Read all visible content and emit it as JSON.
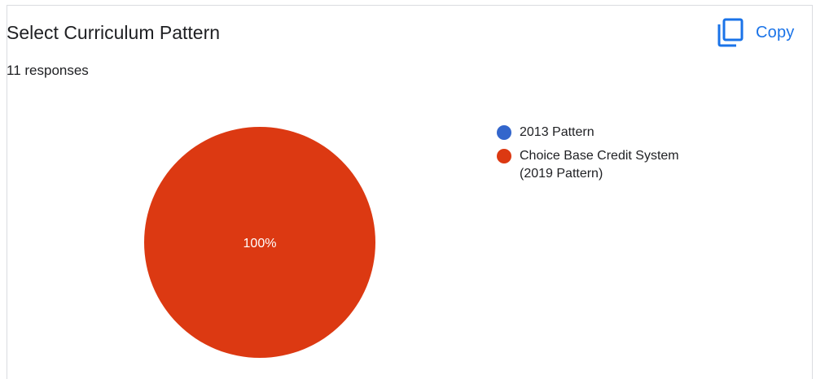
{
  "title": "Select Curriculum Pattern",
  "responses_text": "11 responses",
  "copy_label": "Copy",
  "chart_data": {
    "type": "pie",
    "categories": [
      "2013 Pattern",
      "Choice Base Credit System (2019 Pattern)"
    ],
    "values": [
      0,
      100
    ],
    "colors": [
      "#3366cc",
      "#dc3912"
    ],
    "slice_labels": [
      "",
      "100%"
    ],
    "legend_position": "right"
  }
}
